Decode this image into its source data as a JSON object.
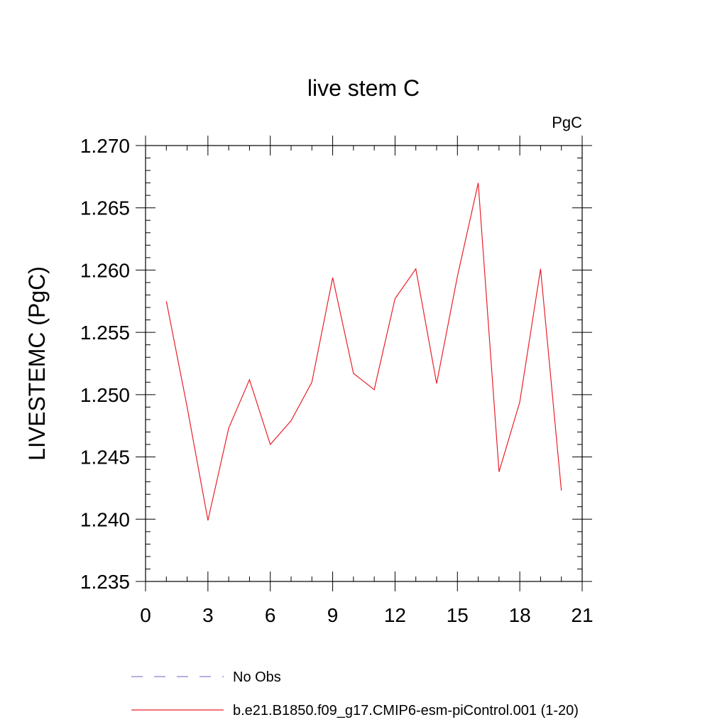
{
  "chart_data": {
    "type": "line",
    "title": "live stem C",
    "units_label": "PgC",
    "ylabel": "LIVESTEMC  (PgC)",
    "xlabel": "",
    "xlim": [
      0,
      21
    ],
    "ylim": [
      1.235,
      1.27
    ],
    "x_ticks": [
      0,
      3,
      6,
      9,
      12,
      15,
      18,
      21
    ],
    "y_ticks": [
      1.235,
      1.24,
      1.245,
      1.25,
      1.255,
      1.26,
      1.265,
      1.27
    ],
    "x_tick_labels": [
      "0",
      "3",
      "6",
      "9",
      "12",
      "15",
      "18",
      "21"
    ],
    "y_tick_labels": [
      "1.235",
      "1.240",
      "1.245",
      "1.250",
      "1.255",
      "1.260",
      "1.265",
      "1.270"
    ],
    "grid": false,
    "legend_position": "bottom",
    "series": [
      {
        "name": "b.e21.B1850.f09_g17.CMIP6-esm-piControl.001 (1-20)",
        "color": "#e8202a",
        "dash": "solid",
        "x": [
          1,
          2,
          3,
          4,
          5,
          6,
          7,
          8,
          9,
          10,
          11,
          12,
          13,
          14,
          15,
          16,
          17,
          18,
          19,
          20
        ],
        "y": [
          1.2575,
          1.249,
          1.2399,
          1.2473,
          1.2512,
          1.246,
          1.2479,
          1.251,
          1.2594,
          1.2517,
          1.2504,
          1.2577,
          1.2601,
          1.2509,
          1.2595,
          1.267,
          1.2438,
          1.2494,
          1.2601,
          1.2423
        ]
      }
    ],
    "legend": [
      {
        "label": "No Obs",
        "color": "#8a7fd0",
        "dash": "dashed"
      },
      {
        "label": "b.e21.B1850.f09_g17.CMIP6-esm-piControl.001 (1-20)",
        "color": "#e8202a",
        "dash": "solid"
      }
    ]
  }
}
